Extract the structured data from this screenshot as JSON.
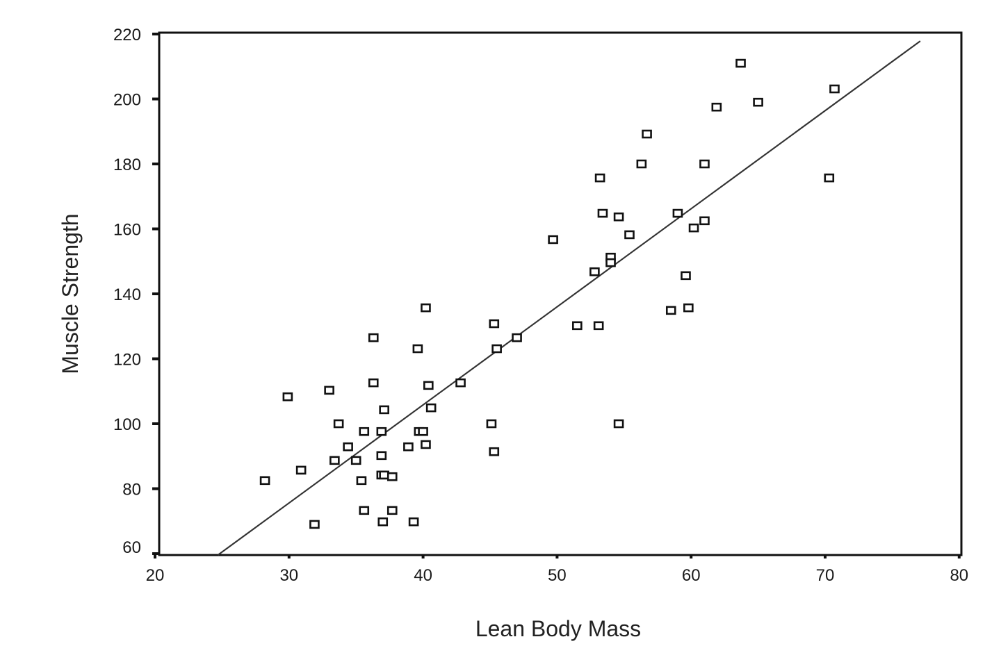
{
  "chart_data": {
    "type": "scatter",
    "title": "",
    "xlabel": "Lean Body Mass",
    "ylabel": "Muscle Strength",
    "xlim": [
      20,
      80
    ],
    "ylim": [
      60,
      220
    ],
    "x_ticks": [
      20,
      30,
      40,
      50,
      60,
      70,
      80
    ],
    "y_ticks": [
      60,
      80,
      100,
      120,
      140,
      160,
      180,
      200,
      220
    ],
    "grid": false,
    "legend": null,
    "marker": "hollow-square",
    "points": [
      [
        28.2,
        82.5
      ],
      [
        29.9,
        108.3
      ],
      [
        30.9,
        85.7
      ],
      [
        31.9,
        69.0
      ],
      [
        33.0,
        110.3
      ],
      [
        33.4,
        88.7
      ],
      [
        33.7,
        100.0
      ],
      [
        34.4,
        92.9
      ],
      [
        35.0,
        88.7
      ],
      [
        35.4,
        82.5
      ],
      [
        35.6,
        97.6
      ],
      [
        35.6,
        73.3
      ],
      [
        36.3,
        126.5
      ],
      [
        36.3,
        112.6
      ],
      [
        36.9,
        97.6
      ],
      [
        36.9,
        90.2
      ],
      [
        36.9,
        84.2
      ],
      [
        37.0,
        69.8
      ],
      [
        37.1,
        104.3
      ],
      [
        37.1,
        84.2
      ],
      [
        37.7,
        83.7
      ],
      [
        37.7,
        73.3
      ],
      [
        38.9,
        92.9
      ],
      [
        39.3,
        69.8
      ],
      [
        39.6,
        123.1
      ],
      [
        39.7,
        97.6
      ],
      [
        40.0,
        97.6
      ],
      [
        40.2,
        135.7
      ],
      [
        40.2,
        93.6
      ],
      [
        40.4,
        111.8
      ],
      [
        40.6,
        104.9
      ],
      [
        42.8,
        112.6
      ],
      [
        45.1,
        100.0
      ],
      [
        45.3,
        130.8
      ],
      [
        45.3,
        91.4
      ],
      [
        45.5,
        123.1
      ],
      [
        47.0,
        126.5
      ],
      [
        49.7,
        156.7
      ],
      [
        51.5,
        130.2
      ],
      [
        52.8,
        146.8
      ],
      [
        53.1,
        130.2
      ],
      [
        53.2,
        175.7
      ],
      [
        53.4,
        164.8
      ],
      [
        54.0,
        151.3
      ],
      [
        54.0,
        149.6
      ],
      [
        54.6,
        163.7
      ],
      [
        54.6,
        100.0
      ],
      [
        55.4,
        158.2
      ],
      [
        56.3,
        180.0
      ],
      [
        56.7,
        189.2
      ],
      [
        58.5,
        134.9
      ],
      [
        59.0,
        164.8
      ],
      [
        59.6,
        145.6
      ],
      [
        59.8,
        135.7
      ],
      [
        60.2,
        160.3
      ],
      [
        61.0,
        180.0
      ],
      [
        61.0,
        162.5
      ],
      [
        61.9,
        197.5
      ],
      [
        63.7,
        211.0
      ],
      [
        65.0,
        199.0
      ],
      [
        70.3,
        175.7
      ],
      [
        70.7,
        203.1
      ]
    ],
    "fit_line": {
      "type": "linear",
      "slope": 3.02,
      "intercept": -15.0,
      "x_start": 24.7,
      "x_end": 77.1
    }
  },
  "colors": {
    "background": "#ffffff",
    "axis": "#111111",
    "marker": "#111111",
    "line": "#333333"
  }
}
